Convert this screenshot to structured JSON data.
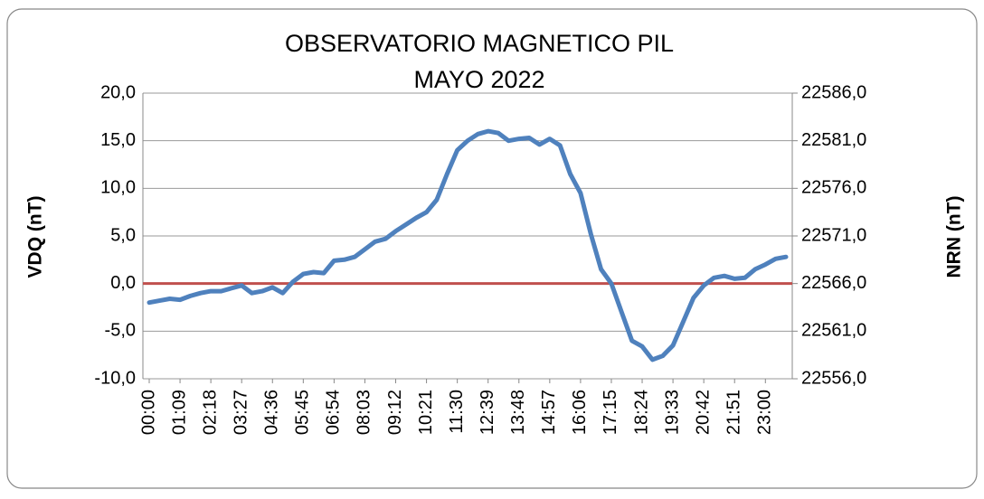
{
  "chart_data": {
    "type": "line",
    "title": [
      "OBSERVATORIO MAGNETICO PIL",
      "MAYO 2022"
    ],
    "y_label": "VDQ (nT)",
    "y2_label": "NRN (nT)",
    "categories": [
      "00:00",
      null,
      null,
      "01:09",
      null,
      null,
      "02:18",
      null,
      null,
      "03:27",
      null,
      null,
      "04:36",
      null,
      null,
      "05:45",
      null,
      null,
      "06:54",
      null,
      null,
      "08:03",
      null,
      null,
      "09:12",
      null,
      null,
      "10:21",
      null,
      null,
      "11:30",
      null,
      null,
      "12:39",
      null,
      null,
      "13:48",
      null,
      null,
      "14:57",
      null,
      null,
      "16:06",
      null,
      null,
      "17:15",
      null,
      null,
      "18:24",
      null,
      null,
      "19:33",
      null,
      null,
      "20:42",
      null,
      null,
      "21:51",
      null,
      null,
      "23:00",
      null,
      null
    ],
    "values": [
      -2.0,
      -1.8,
      -1.6,
      -1.7,
      -1.3,
      -1.0,
      -0.8,
      -0.8,
      -0.5,
      -0.2,
      -1.0,
      -0.8,
      -0.4,
      -1.0,
      0.2,
      1.0,
      1.2,
      1.1,
      2.4,
      2.5,
      2.8,
      3.6,
      4.4,
      4.7,
      5.5,
      6.2,
      6.9,
      7.5,
      8.8,
      11.5,
      14.0,
      15.0,
      15.7,
      16.0,
      15.8,
      15.0,
      15.2,
      15.3,
      14.6,
      15.2,
      14.5,
      11.5,
      9.5,
      5.2,
      1.5,
      0.0,
      -3.0,
      -6.0,
      -6.6,
      -8.0,
      -7.6,
      -6.5,
      -4.0,
      -1.5,
      -0.2,
      0.6,
      0.8,
      0.5,
      0.6,
      1.5,
      2.0,
      2.6,
      2.8
    ],
    "color": "#4f81bd",
    "reference_line": {
      "value": 0,
      "color": "#c0504d"
    },
    "ylim": [
      -10,
      20
    ],
    "yticks": [
      {
        "value": -10,
        "label": "-10,0"
      },
      {
        "value": -5,
        "label": "-5,0"
      },
      {
        "value": 0,
        "label": "0,0"
      },
      {
        "value": 5,
        "label": "5,0"
      },
      {
        "value": 10,
        "label": "10,0"
      },
      {
        "value": 15,
        "label": "15,0"
      },
      {
        "value": 20,
        "label": "20,0"
      }
    ],
    "y2lim": [
      22556,
      22586
    ],
    "y2ticks": [
      {
        "value": 22556,
        "label": "22556,0"
      },
      {
        "value": 22561,
        "label": "22561,0"
      },
      {
        "value": 22566,
        "label": "22566,0"
      },
      {
        "value": 22571,
        "label": "22571,0"
      },
      {
        "value": 22576,
        "label": "22576,0"
      },
      {
        "value": 22581,
        "label": "22581,0"
      },
      {
        "value": 22586,
        "label": "22586,0"
      }
    ],
    "grid": true
  }
}
